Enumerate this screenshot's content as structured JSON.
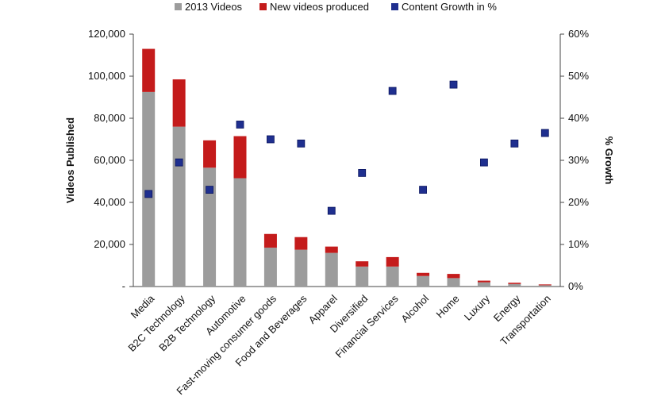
{
  "chart_data": {
    "type": "bar",
    "stacked": true,
    "title": "",
    "categories": [
      "Media",
      "B2C Technology",
      "B2B Technology",
      "Automotive",
      "Fast-moving consumer goods",
      "Food and Beverages",
      "Apparel",
      "Diversified",
      "Financial Services",
      "Alcohol",
      "Home",
      "Luxury",
      "Energy",
      "Transportation"
    ],
    "series": [
      {
        "name": "2013 Videos",
        "kind": "bar",
        "axis": "left",
        "color": "#9c9c9c",
        "values": [
          92500,
          76000,
          56500,
          51500,
          18500,
          17500,
          16000,
          9500,
          9500,
          5000,
          4000,
          2000,
          1200,
          600
        ]
      },
      {
        "name": "New videos produced",
        "kind": "bar",
        "axis": "left",
        "color": "#c41b1b",
        "values": [
          20500,
          22500,
          13000,
          20000,
          6500,
          6000,
          3000,
          2500,
          4500,
          1500,
          2000,
          800,
          600,
          400
        ]
      },
      {
        "name": "Content Growth in %",
        "kind": "marker",
        "axis": "right",
        "color": "#1f2f8f",
        "values": [
          22,
          29.5,
          23,
          38.5,
          35,
          34,
          18,
          27,
          46.5,
          23,
          48,
          29.5,
          34,
          36.5
        ]
      }
    ],
    "ylabel": "Videos Published",
    "ylim": [
      0,
      120000
    ],
    "yticks": [
      "-",
      "20,000",
      "40,000",
      "60,000",
      "80,000",
      "100,000",
      "120,000"
    ],
    "y2label": "% Growth",
    "y2lim": [
      0,
      60
    ],
    "y2ticks": [
      "0%",
      "10%",
      "20%",
      "30%",
      "40%",
      "50%",
      "60%"
    ],
    "legend_position": "top"
  }
}
